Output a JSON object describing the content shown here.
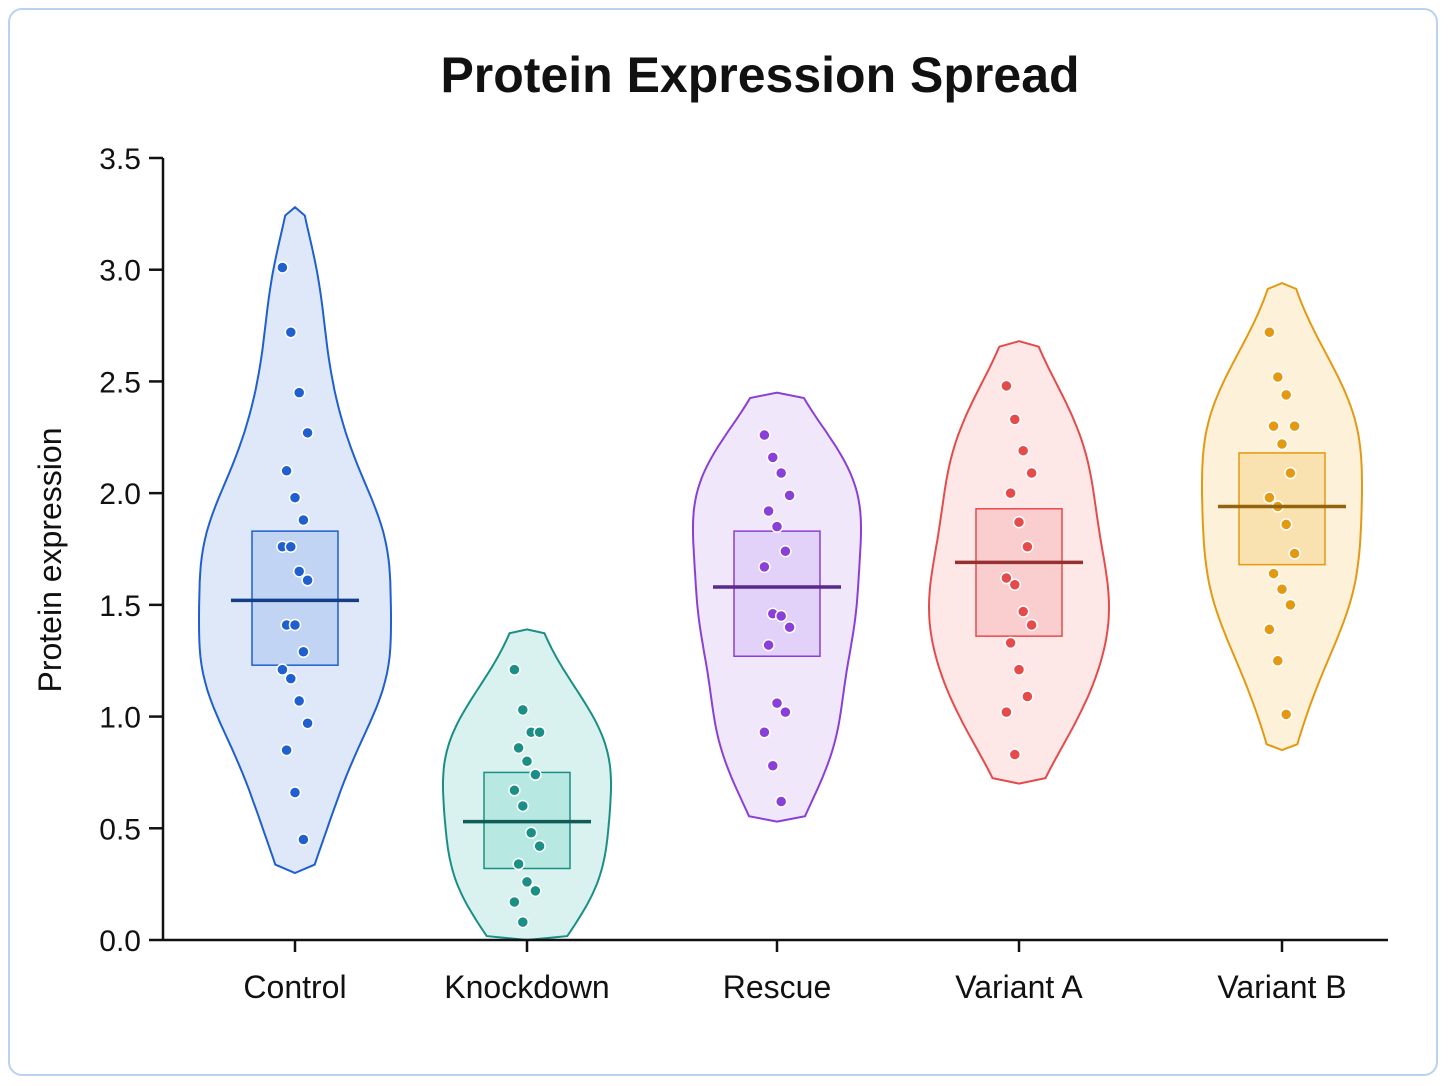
{
  "chart_data": {
    "type": "violin",
    "title": "Protein Expression Spread",
    "xlabel": "",
    "ylabel": "Protein expression",
    "ylim": [
      0,
      3.5
    ],
    "yticks": [
      "0.0",
      "0.5",
      "1.0",
      "1.5",
      "2.0",
      "2.5",
      "3.0",
      "3.5"
    ],
    "grid": false,
    "categories": [
      "Control",
      "Knockdown",
      "Rescue",
      "Variant A",
      "Variant B"
    ],
    "series": [
      {
        "category": "Control",
        "color": "#1f5fcf",
        "fill": "#dbe6f8",
        "box_fill": "#bcd0f3",
        "median": 1.52,
        "q1": 1.23,
        "q3": 1.83,
        "violin_min": 0.3,
        "violin_max": 3.28,
        "points": [
          3.01,
          2.72,
          2.45,
          2.27,
          2.1,
          1.98,
          1.88,
          1.76,
          1.76,
          1.65,
          1.61,
          1.41,
          1.41,
          1.29,
          1.21,
          1.17,
          1.07,
          0.97,
          0.85,
          0.66,
          0.45
        ]
      },
      {
        "category": "Knockdown",
        "color": "#1a8f85",
        "fill": "#d6f1ed",
        "box_fill": "#b2e6df",
        "median": 0.53,
        "q1": 0.32,
        "q3": 0.75,
        "violin_min": 0.0,
        "violin_max": 1.39,
        "points": [
          1.21,
          1.03,
          0.93,
          0.93,
          0.86,
          0.8,
          0.74,
          0.67,
          0.6,
          0.48,
          0.42,
          0.34,
          0.26,
          0.22,
          0.17,
          0.08
        ]
      },
      {
        "category": "Rescue",
        "color": "#8a3fd8",
        "fill": "#efe4fb",
        "box_fill": "#dfccf7",
        "median": 1.58,
        "q1": 1.27,
        "q3": 1.83,
        "violin_min": 0.53,
        "violin_max": 2.45,
        "points": [
          2.26,
          2.16,
          2.09,
          1.99,
          1.92,
          1.85,
          1.74,
          1.67,
          1.46,
          1.45,
          1.4,
          1.32,
          1.06,
          1.02,
          0.93,
          0.78,
          0.62
        ]
      },
      {
        "category": "Variant A",
        "color": "#e54b4b",
        "fill": "#fde4e4",
        "box_fill": "#f9c9c9",
        "median": 1.69,
        "q1": 1.36,
        "q3": 1.93,
        "violin_min": 0.7,
        "violin_max": 2.68,
        "points": [
          2.48,
          2.33,
          2.19,
          2.09,
          2.0,
          1.87,
          1.76,
          1.62,
          1.59,
          1.47,
          1.41,
          1.33,
          1.21,
          1.09,
          1.02,
          0.83
        ]
      },
      {
        "category": "Variant B",
        "color": "#e39a12",
        "fill": "#fdf0d6",
        "box_fill": "#f9dfa8",
        "median": 1.94,
        "q1": 1.68,
        "q3": 2.18,
        "violin_min": 0.85,
        "violin_max": 2.94,
        "points": [
          2.72,
          2.52,
          2.44,
          2.3,
          2.3,
          2.22,
          2.09,
          1.98,
          1.94,
          1.86,
          1.73,
          1.64,
          1.57,
          1.5,
          1.39,
          1.25,
          1.01
        ]
      }
    ]
  }
}
